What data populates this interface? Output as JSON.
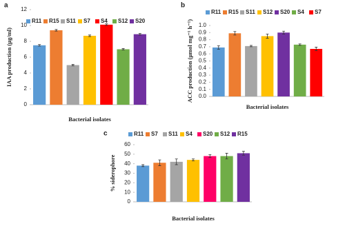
{
  "chart_data": [
    {
      "type": "bar",
      "panel": "a",
      "y_label": "IAA production (µg/ml)",
      "x_label": "Bacterial isolates",
      "categories": [
        "R11",
        "R15",
        "S11",
        "S7",
        "S4",
        "S12",
        "S20"
      ],
      "values": [
        7.5,
        9.4,
        5.0,
        8.7,
        10.1,
        7.0,
        8.9
      ],
      "errors": [
        0.1,
        0.1,
        0.08,
        0.1,
        0.1,
        0.08,
        0.1
      ],
      "colors": [
        "#5b9bd5",
        "#ed7d31",
        "#a5a5a5",
        "#ffc000",
        "#ff0000",
        "#70ad47",
        "#7030a0"
      ],
      "ylim": [
        0,
        12
      ],
      "yticks": [
        0,
        2,
        4,
        6,
        8,
        10,
        12
      ]
    },
    {
      "type": "bar",
      "panel": "b",
      "y_label": "ACC production (µmol mg⁻¹ h⁻¹)",
      "x_label": "Bacterial isolates",
      "categories": [
        "R11",
        "R15",
        "S11",
        "S12",
        "S20",
        "S4",
        "S7"
      ],
      "values": [
        0.69,
        0.89,
        0.71,
        0.85,
        0.9,
        0.73,
        0.67
      ],
      "errors": [
        0.025,
        0.025,
        0.01,
        0.03,
        0.02,
        0.01,
        0.025
      ],
      "colors": [
        "#5b9bd5",
        "#ed7d31",
        "#a5a5a5",
        "#ffc000",
        "#7030a0",
        "#70ad47",
        "#ff0000"
      ],
      "ylim": [
        0,
        1
      ],
      "yticks": [
        {
          "value": 0,
          "label": "0.0"
        },
        0.1,
        0.2,
        0.3,
        0.4,
        0.5,
        0.6,
        0.7,
        0.8,
        0.9,
        {
          "value": 1,
          "label": "1.0"
        }
      ]
    },
    {
      "type": "bar",
      "panel": "c",
      "y_label": "% siderophore",
      "x_label": "Bacterial isolates",
      "categories": [
        "R11",
        "S7",
        "S11",
        "S4",
        "S20",
        "S12",
        "R15"
      ],
      "values": [
        38,
        41,
        42,
        44,
        48,
        48,
        51
      ],
      "errors": [
        1,
        3,
        3,
        1,
        1.5,
        3,
        2
      ],
      "colors": [
        "#5b9bd5",
        "#ed7d31",
        "#a5a5a5",
        "#ffc000",
        "#ff0066",
        "#70ad47",
        "#7030a0"
      ],
      "ylim": [
        0,
        60
      ],
      "yticks": [
        0,
        10,
        20,
        30,
        40,
        50,
        60
      ]
    }
  ]
}
